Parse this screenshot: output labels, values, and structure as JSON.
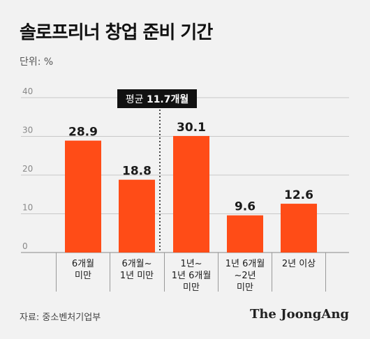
{
  "title": "솔로프리너 창업 준비 기간",
  "unit_label": "단위: %",
  "source": "자료: 중소벤처기업부",
  "brand": "The JoongAng",
  "colors": {
    "bar": "#ff4c17",
    "grid": "#c8c8c8",
    "text": "#1a1a1a"
  },
  "chart_data": {
    "type": "bar",
    "categories": [
      "6개월\n미만",
      "6개월~\n1년 미만",
      "1년~\n1년 6개월\n미만",
      "1년 6개월\n~2년\n미만",
      "2년 이상"
    ],
    "values": [
      28.9,
      18.8,
      30.1,
      9.6,
      12.6
    ],
    "value_labels": [
      "28.9",
      "18.8",
      "30.1",
      "9.6",
      "12.6"
    ],
    "yticks": [
      0,
      10,
      20,
      30,
      40
    ],
    "ylim": [
      0,
      40
    ],
    "grid": true,
    "annotation": {
      "label": "평균 ",
      "value": "11.7개월"
    }
  }
}
